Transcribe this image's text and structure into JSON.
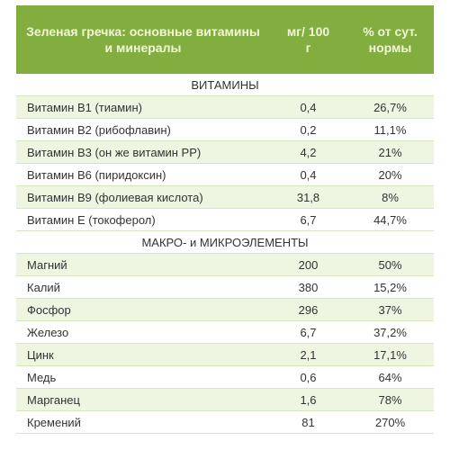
{
  "header": {
    "title": "Зеленая гречка: основные витамины и минералы",
    "col2": "мг/ 100 г",
    "col3": "% от сут. нормы"
  },
  "sections": [
    {
      "title": "ВИТАМИНЫ",
      "rows": [
        [
          "Витамин B1 (тиамин)",
          "0,4",
          "26,7%"
        ],
        [
          "Витамин B2 (рибофлавин)",
          "0,2",
          "11,1%"
        ],
        [
          "Витамин B3 (он же витамин PP)",
          "4,2",
          "21%"
        ],
        [
          "Витамин B6 (пиридоксин)",
          "0,4",
          "20%"
        ],
        [
          "Витамин B9 (фолиевая кислота)",
          "31,8",
          "8%"
        ],
        [
          "Витамин E (токоферол)",
          "6,7",
          "44,7%"
        ]
      ]
    },
    {
      "title": "МАКРО- и МИКРОЭЛЕМЕНТЫ",
      "rows": [
        [
          "Магний",
          "200",
          "50%"
        ],
        [
          "Калий",
          "380",
          "15,2%"
        ],
        [
          "Фосфор",
          "296",
          "37%"
        ],
        [
          "Железо",
          "6,7",
          "37,2%"
        ],
        [
          "Цинк",
          "2,1",
          "17,1%"
        ],
        [
          "Медь",
          "0,6",
          "64%"
        ],
        [
          "Марганец",
          "1,6",
          "78%"
        ],
        [
          "Кремений",
          "81",
          "270%"
        ]
      ]
    }
  ]
}
